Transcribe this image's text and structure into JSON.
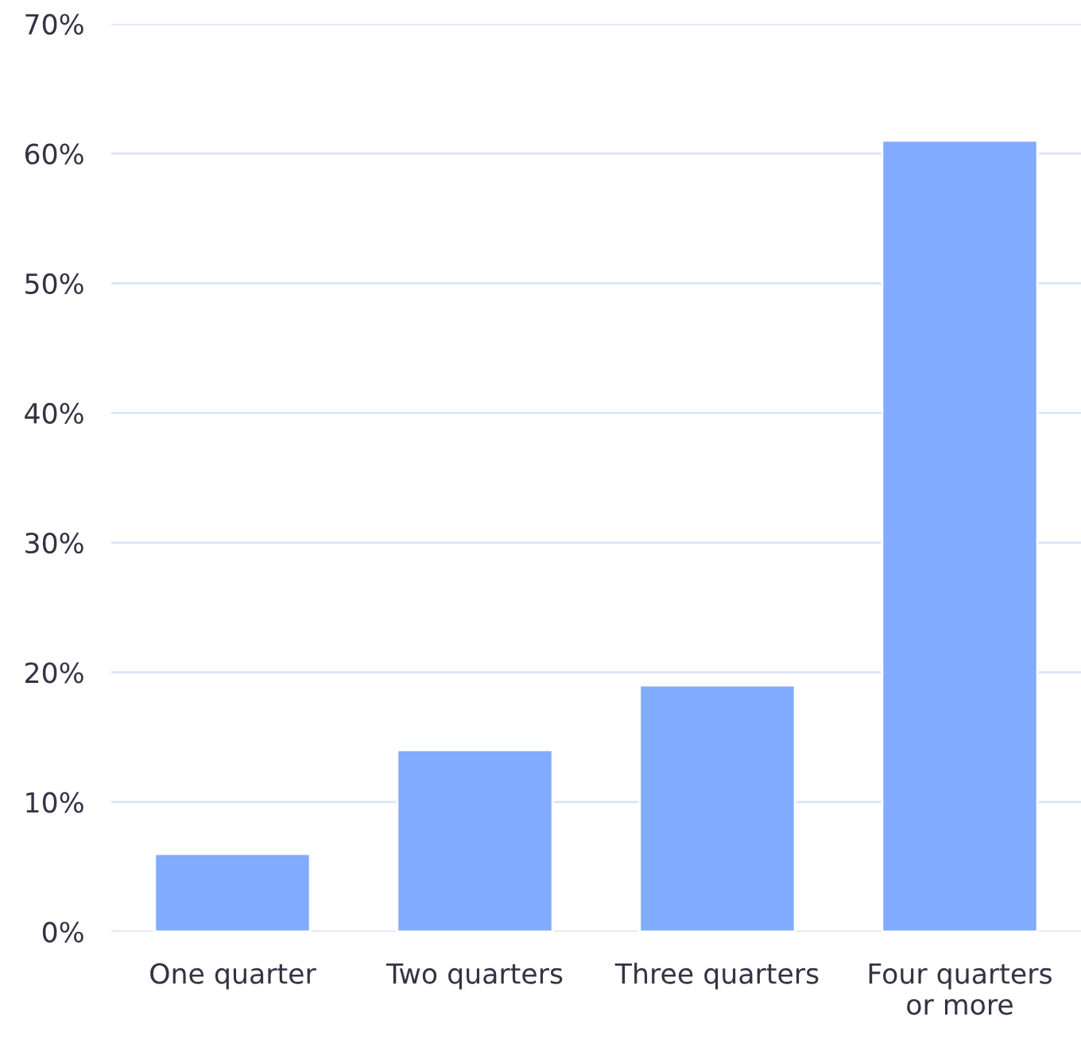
{
  "chart_data": {
    "type": "bar",
    "categories": [
      "One quarter",
      "Two quarters",
      "Three quarters",
      "Four quarters\nor more"
    ],
    "values": [
      6,
      14,
      19,
      61
    ],
    "color": "#80abff",
    "ylim": [
      0,
      70
    ],
    "yticks": [
      {
        "value": 0,
        "label": "0%"
      },
      {
        "value": 10,
        "label": "10%"
      },
      {
        "value": 20,
        "label": "20%"
      },
      {
        "value": 30,
        "label": "30%"
      },
      {
        "value": 40,
        "label": "40%"
      },
      {
        "value": 50,
        "label": "50%"
      },
      {
        "value": 60,
        "label": "60%"
      },
      {
        "value": 70,
        "label": "70%"
      }
    ],
    "grid": "y"
  }
}
